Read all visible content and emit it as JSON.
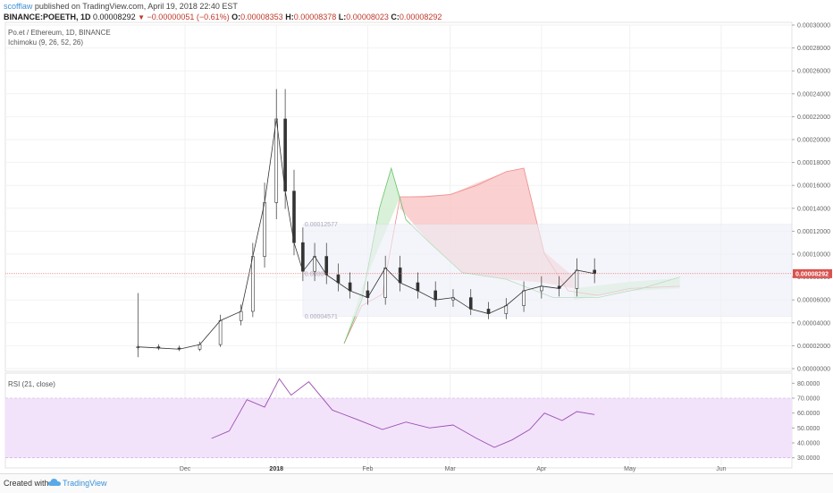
{
  "header": {
    "author": "scofflaw",
    "published": "published on TradingView.com, April 19, 2018 22:40 EST",
    "symbol": "BINANCE:POEETH, 1D",
    "last": "0.00008292",
    "change": "−0.00000051 (−0.61%)",
    "open_label": "O:",
    "open": "0.00008353",
    "high_label": "H:",
    "high": "0.00008378",
    "low_label": "L:",
    "low": "0.00008023",
    "close_label": "C:",
    "close": "0.00008292"
  },
  "legend": {
    "pair": "Po.et / Ethereum, 1D, BINANCE",
    "ichimoku": "Ichimoku (9, 26, 52, 26)",
    "rsi": "RSI (21, close)"
  },
  "footer": {
    "created": "Created with",
    "brand": "TradingView"
  },
  "colors": {
    "up": "#26a69a",
    "down": "#ef5350",
    "candle_body": "#333333",
    "kumo_green": "#d4f0d4",
    "kumo_red": "#f9c8c8",
    "rsi": "#9c4fb0",
    "rsi_band": "#f2e3fb",
    "price_line": "#e06060",
    "current_price_bg": "#d9534f"
  },
  "chart_data": [
    {
      "type": "line",
      "title": "Po.et / Ethereum, 1D, BINANCE",
      "price_scale": [
        "0.00030000",
        "0.00028000",
        "0.00026000",
        "0.00024000",
        "0.00022000",
        "0.00020000",
        "0.00018000",
        "0.00016000",
        "0.00014000",
        "0.00012000",
        "0.00010000",
        "0.00008000",
        "0.00006000",
        "0.00004000",
        "0.00002000",
        "0.00000000"
      ],
      "ylim": [
        0,
        0.0003
      ],
      "current_price": "0.00008292",
      "x_ticks": [
        {
          "label": "Dec",
          "bold": false
        },
        {
          "label": "2018",
          "bold": true
        },
        {
          "label": "Feb",
          "bold": false
        },
        {
          "label": "Mar",
          "bold": false
        },
        {
          "label": "Apr",
          "bold": false
        },
        {
          "label": "May",
          "bold": false
        },
        {
          "label": "Jun",
          "bold": false
        }
      ],
      "fib_labels": [
        "0.00012577",
        "0.0000",
        "0.00004571"
      ],
      "series": [
        {
          "name": "Close",
          "dates": [
            "2017-11-15",
            "2017-11-22",
            "2017-11-29",
            "2017-12-06",
            "2017-12-13",
            "2017-12-20",
            "2017-12-24",
            "2017-12-28",
            "2018-01-01",
            "2018-01-04",
            "2018-01-07",
            "2018-01-10",
            "2018-01-14",
            "2018-01-18",
            "2018-01-22",
            "2018-01-26",
            "2018-02-01",
            "2018-02-07",
            "2018-02-12",
            "2018-02-18",
            "2018-02-24",
            "2018-03-02",
            "2018-03-08",
            "2018-03-14",
            "2018-03-20",
            "2018-03-26",
            "2018-04-01",
            "2018-04-07",
            "2018-04-13",
            "2018-04-19"
          ],
          "values": [
            1.9e-05,
            1.8e-05,
            1.7e-05,
            2.1e-05,
            4.2e-05,
            5e-05,
            9.8e-05,
            0.000145,
            0.000218,
            0.000155,
            0.00011,
            8.5e-05,
            9.8e-05,
            8.2e-05,
            7.5e-05,
            6.8e-05,
            6.2e-05,
            8.8e-05,
            7.5e-05,
            6.8e-05,
            6e-05,
            6.2e-05,
            5.2e-05,
            4.8e-05,
            5.5e-05,
            6.8e-05,
            7.2e-05,
            7e-05,
            8.6e-05,
            8.3e-05
          ]
        },
        {
          "name": "RSI",
          "dates": [
            "2017-12-10",
            "2017-12-16",
            "2017-12-22",
            "2017-12-28",
            "2018-01-02",
            "2018-01-06",
            "2018-01-12",
            "2018-01-20",
            "2018-01-28",
            "2018-02-06",
            "2018-02-14",
            "2018-02-22",
            "2018-03-02",
            "2018-03-10",
            "2018-03-16",
            "2018-03-22",
            "2018-03-28",
            "2018-04-02",
            "2018-04-08",
            "2018-04-13",
            "2018-04-19"
          ],
          "values": [
            43,
            48,
            69,
            64,
            83,
            72,
            81,
            62,
            56,
            49,
            54,
            50,
            52,
            43,
            37,
            42,
            49,
            60,
            55,
            61,
            59
          ],
          "ylim": [
            25,
            85
          ],
          "ticks": [
            "80.0000",
            "70.0000",
            "60.0000",
            "50.0000",
            "40.0000",
            "30.0000"
          ]
        }
      ]
    }
  ]
}
